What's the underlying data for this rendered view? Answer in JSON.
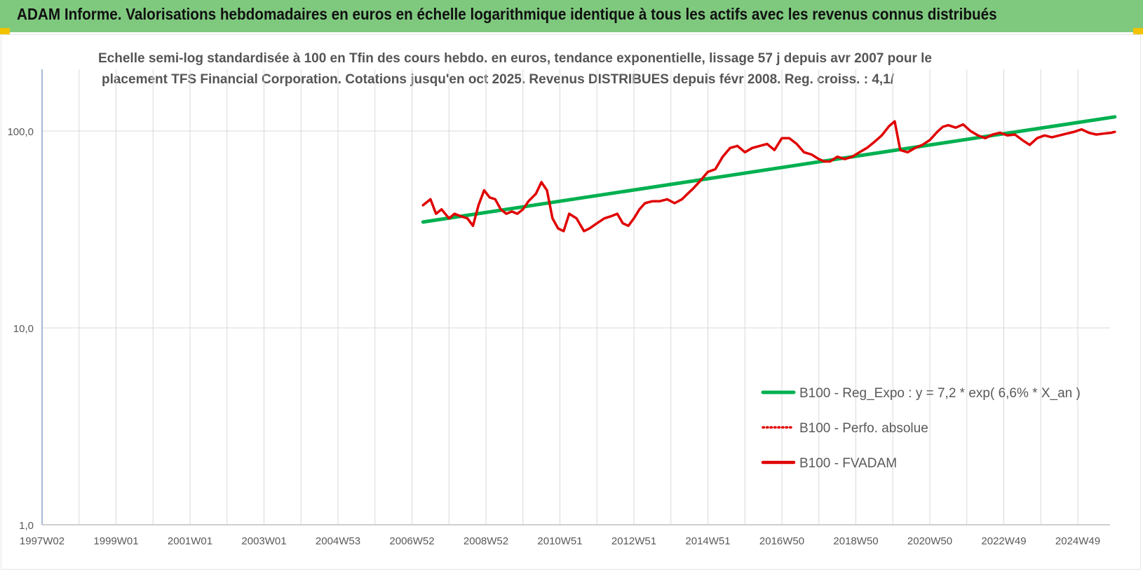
{
  "header": {
    "title": "ADAM Informe. Valorisations hebdomadaires en euros en échelle logarithmique identique à tous les actifs avec les revenus connus distribués"
  },
  "colors": {
    "header_bg": "#7fc97f",
    "trend": "#00b050",
    "fvadam": "#e00000",
    "perfo": "#e00000",
    "grid": "#d9d9d9",
    "axis": "#8ea2c8",
    "text": "#595959"
  },
  "chart_data": {
    "type": "line",
    "title_line1": "Echelle semi-log standardisée à 100 en Tfin des cours hebdo. en euros, tendance exponentielle, lissage 57 j depuis avr 2007 pour le",
    "title_line2": "placement TFS Financial Corporation. Cotations jusqu'en oct 2025. Revenus DISTRIBUES depuis févr 2008. Reg. croiss. : 4,1/",
    "yscale": "log",
    "ylim": [
      1,
      200
    ],
    "y_ticks": [
      {
        "value": 1,
        "label": "1,0"
      },
      {
        "value": 10,
        "label": "10,0"
      },
      {
        "value": 100,
        "label": "100,0"
      }
    ],
    "xlim": [
      1997.0,
      2026.0
    ],
    "x_ticks": [
      {
        "value": 1997.0,
        "label": "1997W02"
      },
      {
        "value": 1999.0,
        "label": "1999W01"
      },
      {
        "value": 2001.0,
        "label": "2001W01"
      },
      {
        "value": 2003.0,
        "label": "2003W01"
      },
      {
        "value": 2005.0,
        "label": "2004W53"
      },
      {
        "value": 2007.0,
        "label": "2006W52"
      },
      {
        "value": 2009.0,
        "label": "2008W52"
      },
      {
        "value": 2011.0,
        "label": "2010W51"
      },
      {
        "value": 2013.0,
        "label": "2012W51"
      },
      {
        "value": 2015.0,
        "label": "2014W51"
      },
      {
        "value": 2017.0,
        "label": "2016W50"
      },
      {
        "value": 2019.0,
        "label": "2018W50"
      },
      {
        "value": 2021.0,
        "label": "2020W50"
      },
      {
        "value": 2023.0,
        "label": "2022W49"
      },
      {
        "value": 2025.0,
        "label": "2024W49"
      }
    ],
    "legend_position": "right",
    "series": [
      {
        "name": "B100 - Reg_Expo : y = 7,2 * exp( 6,6% *  X_an )",
        "style": "solid-thick",
        "color": "#00b050",
        "x": [
          2007.3,
          2026.0
        ],
        "y": [
          34.5,
          118
        ]
      },
      {
        "name": "B100 - Perfo. absolue",
        "style": "dotted",
        "color": "#e00000",
        "x": [],
        "y": []
      },
      {
        "name": "B100 - FVADAM",
        "style": "solid",
        "color": "#e00000",
        "x": [
          2007.3,
          2007.5,
          2007.65,
          2007.8,
          2008.0,
          2008.15,
          2008.3,
          2008.5,
          2008.65,
          2008.8,
          2008.95,
          2009.1,
          2009.25,
          2009.4,
          2009.55,
          2009.7,
          2009.85,
          2010.0,
          2010.15,
          2010.35,
          2010.5,
          2010.65,
          2010.8,
          2010.95,
          2011.1,
          2011.25,
          2011.45,
          2011.65,
          2011.8,
          2012.0,
          2012.2,
          2012.4,
          2012.55,
          2012.7,
          2012.85,
          2013.0,
          2013.15,
          2013.3,
          2013.5,
          2013.7,
          2013.9,
          2014.1,
          2014.3,
          2014.45,
          2014.6,
          2014.8,
          2015.0,
          2015.2,
          2015.4,
          2015.6,
          2015.8,
          2016.0,
          2016.2,
          2016.4,
          2016.6,
          2016.8,
          2017.0,
          2017.2,
          2017.4,
          2017.6,
          2017.8,
          2018.0,
          2018.15,
          2018.3,
          2018.5,
          2018.7,
          2018.9,
          2019.1,
          2019.3,
          2019.5,
          2019.7,
          2019.9,
          2020.05,
          2020.2,
          2020.4,
          2020.6,
          2020.8,
          2021.0,
          2021.2,
          2021.35,
          2021.5,
          2021.7,
          2021.9,
          2022.1,
          2022.3,
          2022.5,
          2022.7,
          2022.9,
          2023.1,
          2023.3,
          2023.5,
          2023.7,
          2023.9,
          2024.1,
          2024.3,
          2024.5,
          2024.7,
          2024.9,
          2025.1,
          2025.3,
          2025.5,
          2025.7,
          2025.9,
          2026.0
        ],
        "y": [
          42,
          45,
          38,
          40,
          36,
          38,
          37,
          36,
          33,
          42,
          50,
          46,
          45,
          40,
          38,
          39,
          38,
          40,
          44,
          48,
          55,
          50,
          36,
          32,
          31,
          38,
          36,
          31,
          32,
          34,
          36,
          37,
          38,
          34,
          33,
          36,
          40,
          43,
          44,
          44,
          45,
          43,
          45,
          48,
          51,
          56,
          62,
          64,
          74,
          82,
          84,
          78,
          82,
          84,
          86,
          80,
          92,
          92,
          86,
          78,
          76,
          72,
          70,
          70,
          74,
          72,
          74,
          78,
          82,
          88,
          95,
          106,
          112,
          80,
          78,
          82,
          85,
          90,
          99,
          105,
          107,
          104,
          108,
          100,
          95,
          92,
          96,
          98,
          95,
          96,
          90,
          85,
          92,
          95,
          93,
          95,
          97,
          99,
          102,
          98,
          96,
          97,
          98,
          99
        ]
      }
    ]
  }
}
